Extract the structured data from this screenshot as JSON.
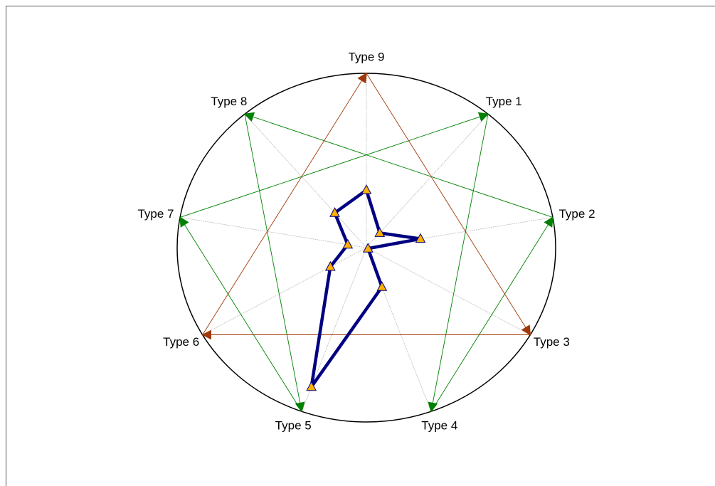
{
  "chart_data": {
    "type": "radar",
    "categories": [
      "Type 1",
      "Type 2",
      "Type 3",
      "Type 4",
      "Type 5",
      "Type 6",
      "Type 7",
      "Type 8",
      "Type 9"
    ],
    "series": [
      {
        "color": "#000080",
        "values": [
          11,
          29,
          1,
          24,
          85,
          22,
          10,
          26,
          33
        ]
      }
    ],
    "rlim": [
      0,
      100
    ]
  }
}
